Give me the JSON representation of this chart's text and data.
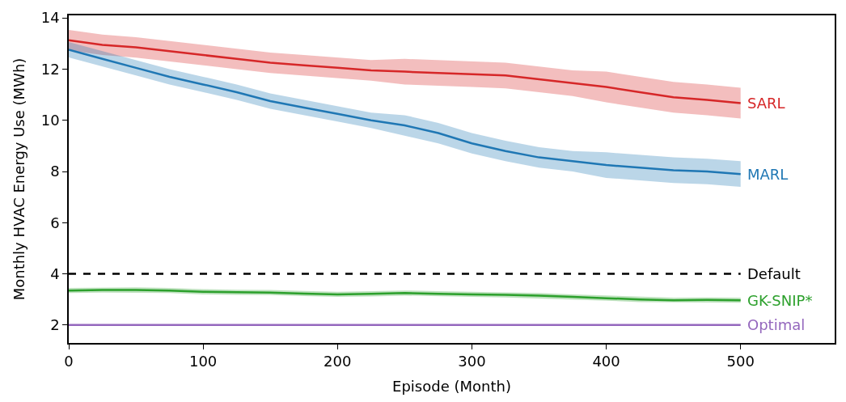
{
  "chart_data": {
    "type": "line",
    "xlabel": "Episode (Month)",
    "ylabel": "Monthly HVAC Energy Use (MWh)",
    "x": [
      0,
      25,
      50,
      75,
      100,
      125,
      150,
      175,
      200,
      225,
      250,
      275,
      300,
      325,
      350,
      375,
      400,
      425,
      450,
      475,
      500
    ],
    "xlim": [
      0,
      570
    ],
    "xticks": [
      0,
      100,
      200,
      300,
      400,
      500
    ],
    "ylim": [
      1.3,
      14.1
    ],
    "yticks": [
      2,
      4,
      6,
      8,
      10,
      12,
      14
    ],
    "legend": false,
    "marker": "none",
    "line_style": "solid",
    "series": [
      {
        "name": "SARL",
        "color": "#d62728",
        "values": [
          13.13,
          12.95,
          12.85,
          12.7,
          12.55,
          12.4,
          12.25,
          12.15,
          12.05,
          11.95,
          11.9,
          11.85,
          11.8,
          11.75,
          11.6,
          11.45,
          11.3,
          11.1,
          10.9,
          10.8,
          10.67
        ],
        "lower": [
          12.73,
          12.55,
          12.45,
          12.3,
          12.15,
          12.0,
          11.85,
          11.75,
          11.65,
          11.55,
          11.4,
          11.35,
          11.3,
          11.25,
          11.1,
          10.95,
          10.7,
          10.5,
          10.3,
          10.2,
          10.07
        ],
        "upper": [
          13.53,
          13.35,
          13.25,
          13.1,
          12.95,
          12.8,
          12.65,
          12.55,
          12.45,
          12.35,
          12.4,
          12.35,
          12.3,
          12.25,
          12.1,
          11.95,
          11.9,
          11.7,
          11.5,
          11.4,
          11.27
        ]
      },
      {
        "name": "MARL",
        "color": "#1f77b4",
        "values": [
          12.76,
          12.4,
          12.05,
          11.7,
          11.4,
          11.1,
          10.75,
          10.5,
          10.25,
          10.0,
          9.8,
          9.5,
          9.1,
          8.8,
          8.55,
          8.4,
          8.25,
          8.15,
          8.05,
          8.0,
          7.9
        ],
        "lower": [
          12.46,
          12.1,
          11.75,
          11.4,
          11.1,
          10.8,
          10.45,
          10.2,
          9.95,
          9.7,
          9.4,
          9.1,
          8.7,
          8.4,
          8.15,
          8.0,
          7.75,
          7.65,
          7.55,
          7.5,
          7.4
        ],
        "upper": [
          13.06,
          12.7,
          12.35,
          12.0,
          11.7,
          11.4,
          11.05,
          10.8,
          10.55,
          10.3,
          10.2,
          9.9,
          9.5,
          9.2,
          8.95,
          8.8,
          8.75,
          8.65,
          8.55,
          8.5,
          8.4
        ]
      },
      {
        "name": "Default",
        "color": "#000000",
        "line_style": "dashed",
        "values": [
          4,
          4,
          4,
          4,
          4,
          4,
          4,
          4,
          4,
          4,
          4,
          4,
          4,
          4,
          4,
          4,
          4,
          4,
          4,
          4,
          4
        ]
      },
      {
        "name": "GK-SNIP*",
        "color": "#2ca02c",
        "values": [
          3.35,
          3.37,
          3.37,
          3.35,
          3.3,
          3.28,
          3.27,
          3.23,
          3.2,
          3.22,
          3.25,
          3.22,
          3.2,
          3.18,
          3.15,
          3.1,
          3.05,
          3.0,
          2.97,
          2.98,
          2.97
        ],
        "lower": [
          3.25,
          3.27,
          3.27,
          3.25,
          3.2,
          3.18,
          3.17,
          3.13,
          3.1,
          3.12,
          3.15,
          3.12,
          3.1,
          3.08,
          3.05,
          3.0,
          2.95,
          2.9,
          2.87,
          2.88,
          2.87
        ],
        "upper": [
          3.45,
          3.47,
          3.47,
          3.45,
          3.4,
          3.38,
          3.37,
          3.33,
          3.3,
          3.32,
          3.35,
          3.32,
          3.3,
          3.28,
          3.25,
          3.2,
          3.15,
          3.1,
          3.07,
          3.08,
          3.07
        ]
      },
      {
        "name": "Optimal",
        "color": "#9467bd",
        "values": [
          2,
          2,
          2,
          2,
          2,
          2,
          2,
          2,
          2,
          2,
          2,
          2,
          2,
          2,
          2,
          2,
          2,
          2,
          2,
          2,
          2
        ]
      }
    ]
  }
}
